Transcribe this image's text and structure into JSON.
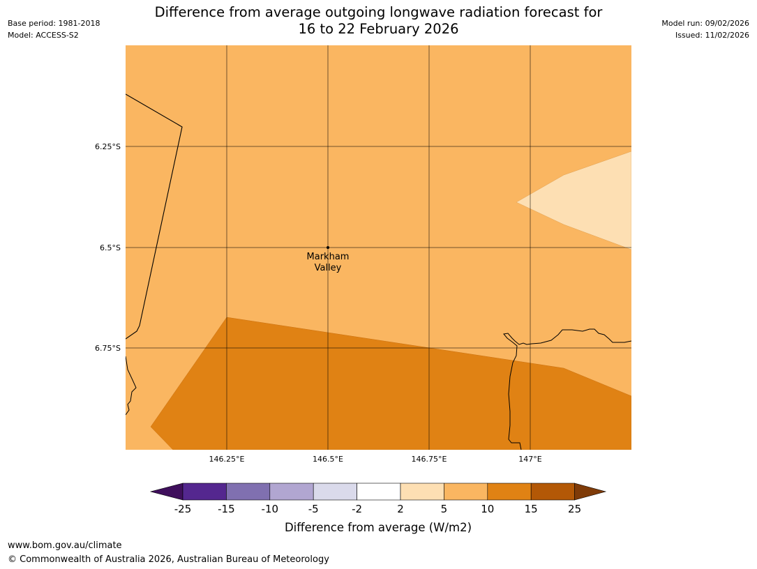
{
  "header": {
    "title_line1": "Difference from average outgoing longwave radiation forecast for",
    "title_line2": "16 to 22 February 2026",
    "base_period": "Base period: 1981-2018",
    "model": "Model: ACCESS-S2",
    "model_run": "Model run: 09/02/2026",
    "issued": "Issued: 11/02/2026"
  },
  "map": {
    "lat_labels": [
      "6.25°S",
      "6.5°S",
      "6.75°S"
    ],
    "lon_labels": [
      "146.25°E",
      "146.5°E",
      "146.75°E",
      "147°E"
    ],
    "location": {
      "name_line1": "Markham",
      "name_line2": "Valley"
    }
  },
  "legend": {
    "title": "Difference from average (W/m2)",
    "ticks": [
      "-25",
      "-15",
      "-10",
      "-5",
      "-2",
      "2",
      "5",
      "10",
      "15",
      "25"
    ],
    "colors": [
      "#3f0f5c",
      "#54278f",
      "#8070b0",
      "#b1a6d1",
      "#dadaeb",
      "#ffffff",
      "#fddfb3",
      "#fab661",
      "#e08214",
      "#b35806",
      "#7f3b08"
    ]
  },
  "footer": {
    "url": "www.bom.gov.au/climate",
    "copyright": "© Commonwealth of Australia 2026, Australian Bureau of Meteorology"
  }
}
